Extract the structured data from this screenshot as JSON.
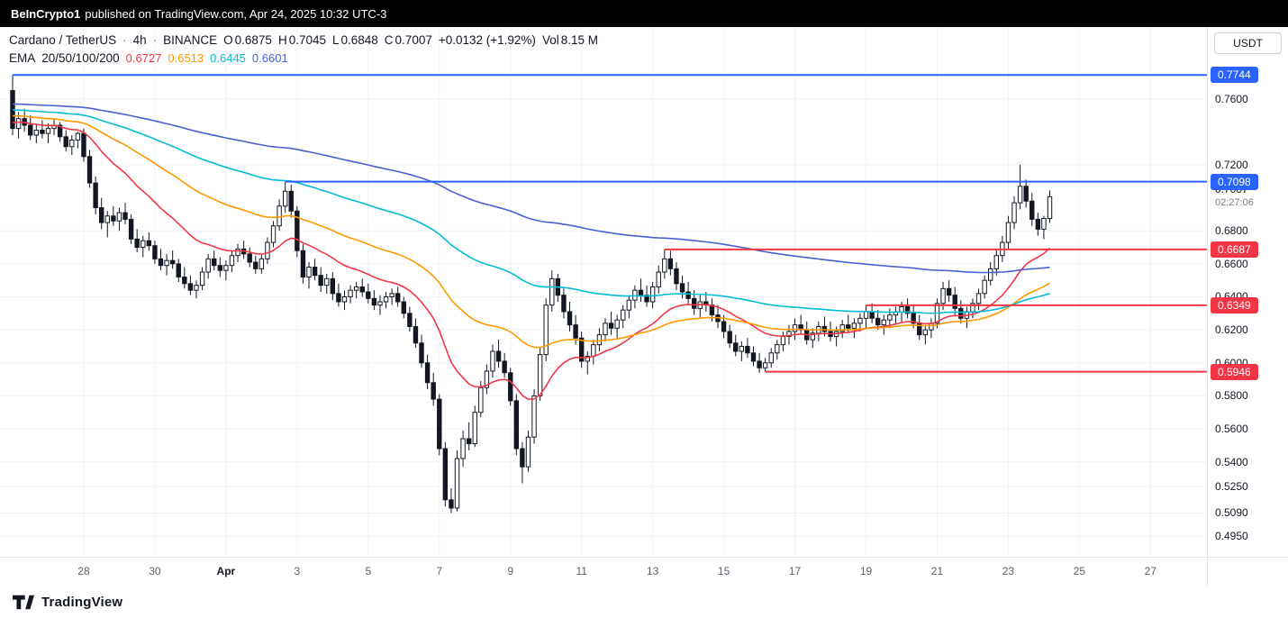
{
  "header": {
    "author": "BeInCrypto1",
    "text": "published on TradingView.com, Apr 24, 2025 10:32 UTC-3"
  },
  "legend": {
    "symbol": "Cardano / TetherUS",
    "dot": "·",
    "interval": "4h",
    "exchange": "BINANCE",
    "o_label": "O",
    "o": "0.6875",
    "h_label": "H",
    "h": "0.7045",
    "l_label": "L",
    "l": "0.6848",
    "c_label": "C",
    "c": "0.7007",
    "change": "+0.0132 (+1.92%)",
    "vol_label": "Vol",
    "vol": "8.15 M",
    "ema": {
      "label": "EMA",
      "params": "20/50/100/200",
      "values": [
        "0.6727",
        "0.6513",
        "0.6445",
        "0.6601"
      ]
    }
  },
  "axis": {
    "currency": "USDT"
  },
  "footer": {
    "brand": "TradingView"
  },
  "chart_data": {
    "type": "candlestick",
    "symbol": "Cardano / TetherUS (ADA/USDT)",
    "exchange": "BINANCE",
    "interval": "4h",
    "ylim": [
      0.4825,
      0.8035
    ],
    "start_label": "Mar 26",
    "bars_per_day": 6,
    "colors": {
      "up_fill": "#ffffff",
      "down_fill": "#131722",
      "outline": "#131722",
      "grid": "#f0f3fa",
      "level_blue": "#2962ff",
      "level_red": "#f23645"
    },
    "price_ticks": [
      "0.7600",
      "0.7200",
      "0.6800",
      "0.6600",
      "0.6400",
      "0.6200",
      "0.6000",
      "0.5800",
      "0.5600",
      "0.5400",
      "0.5250",
      "0.5090",
      "0.4950"
    ],
    "time_ticks": [
      {
        "label": "28",
        "index": 12
      },
      {
        "label": "30",
        "index": 24
      },
      {
        "label": "Apr",
        "index": 36,
        "month": true
      },
      {
        "label": "3",
        "index": 48
      },
      {
        "label": "5",
        "index": 60
      },
      {
        "label": "7",
        "index": 72
      },
      {
        "label": "9",
        "index": 84
      },
      {
        "label": "11",
        "index": 96
      },
      {
        "label": "13",
        "index": 108
      },
      {
        "label": "15",
        "index": 120
      },
      {
        "label": "17",
        "index": 132
      },
      {
        "label": "19",
        "index": 144
      },
      {
        "label": "21",
        "index": 156
      },
      {
        "label": "23",
        "index": 168
      },
      {
        "label": "25",
        "index": 180
      },
      {
        "label": "27",
        "index": 192
      }
    ],
    "current_price": {
      "value": "0.7007",
      "countdown": "02:27:06"
    },
    "levels": [
      {
        "label": "0.7744",
        "value": 0.7744,
        "color": "#2962ff",
        "start_index": 0
      },
      {
        "label": "0.7098",
        "value": 0.7098,
        "color": "#2962ff",
        "start_index": 46
      },
      {
        "label": "0.6687",
        "value": 0.6687,
        "color": "#f23645",
        "start_index": 110
      },
      {
        "label": "0.6349",
        "value": 0.6349,
        "color": "#f23645",
        "start_index": 144
      },
      {
        "label": "0.5946",
        "value": 0.5946,
        "color": "#f23645",
        "start_index": 127
      }
    ],
    "ema": {
      "periods": [
        20,
        50,
        100,
        200
      ],
      "seeds": [
        0.746,
        0.75,
        0.7535,
        0.757
      ],
      "colors": [
        "#f23645",
        "#ff9800",
        "#00bcd4",
        "#4a5fd0"
      ],
      "last_values": [
        0.6727,
        0.6513,
        0.6445,
        0.6601
      ]
    },
    "candles": [
      [
        0.765,
        0.7744,
        0.738,
        0.742
      ],
      [
        0.742,
        0.752,
        0.736,
        0.748
      ],
      [
        0.748,
        0.754,
        0.74,
        0.744
      ],
      [
        0.744,
        0.75,
        0.735,
        0.738
      ],
      [
        0.738,
        0.745,
        0.733,
        0.741
      ],
      [
        0.741,
        0.747,
        0.736,
        0.739
      ],
      [
        0.739,
        0.745,
        0.733,
        0.742
      ],
      [
        0.742,
        0.748,
        0.738,
        0.744
      ],
      [
        0.744,
        0.746,
        0.734,
        0.737
      ],
      [
        0.737,
        0.741,
        0.728,
        0.731
      ],
      [
        0.731,
        0.738,
        0.726,
        0.735
      ],
      [
        0.735,
        0.74,
        0.73,
        0.739
      ],
      [
        0.739,
        0.742,
        0.722,
        0.725
      ],
      [
        0.725,
        0.729,
        0.706,
        0.709
      ],
      [
        0.709,
        0.713,
        0.69,
        0.694
      ],
      [
        0.694,
        0.7,
        0.681,
        0.685
      ],
      [
        0.685,
        0.692,
        0.676,
        0.689
      ],
      [
        0.689,
        0.695,
        0.683,
        0.686
      ],
      [
        0.686,
        0.694,
        0.68,
        0.691
      ],
      [
        0.691,
        0.697,
        0.684,
        0.687
      ],
      [
        0.687,
        0.69,
        0.672,
        0.675
      ],
      [
        0.675,
        0.681,
        0.667,
        0.67
      ],
      [
        0.67,
        0.677,
        0.664,
        0.674
      ],
      [
        0.674,
        0.679,
        0.668,
        0.671
      ],
      [
        0.671,
        0.674,
        0.66,
        0.663
      ],
      [
        0.663,
        0.669,
        0.656,
        0.659
      ],
      [
        0.659,
        0.666,
        0.653,
        0.662
      ],
      [
        0.662,
        0.668,
        0.657,
        0.66
      ],
      [
        0.66,
        0.663,
        0.649,
        0.652
      ],
      [
        0.652,
        0.658,
        0.645,
        0.648
      ],
      [
        0.648,
        0.653,
        0.641,
        0.644
      ],
      [
        0.644,
        0.65,
        0.639,
        0.647
      ],
      [
        0.647,
        0.658,
        0.644,
        0.655
      ],
      [
        0.655,
        0.666,
        0.651,
        0.663
      ],
      [
        0.663,
        0.668,
        0.656,
        0.659
      ],
      [
        0.659,
        0.664,
        0.652,
        0.656
      ],
      [
        0.656,
        0.662,
        0.65,
        0.659
      ],
      [
        0.659,
        0.668,
        0.655,
        0.665
      ],
      [
        0.665,
        0.672,
        0.661,
        0.669
      ],
      [
        0.669,
        0.674,
        0.663,
        0.666
      ],
      [
        0.666,
        0.67,
        0.658,
        0.661
      ],
      [
        0.661,
        0.665,
        0.654,
        0.657
      ],
      [
        0.657,
        0.666,
        0.654,
        0.663
      ],
      [
        0.663,
        0.676,
        0.66,
        0.673
      ],
      [
        0.673,
        0.686,
        0.67,
        0.683
      ],
      [
        0.683,
        0.699,
        0.68,
        0.695
      ],
      [
        0.695,
        0.7098,
        0.691,
        0.704
      ],
      [
        0.704,
        0.708,
        0.688,
        0.692
      ],
      [
        0.692,
        0.695,
        0.664,
        0.668
      ],
      [
        0.668,
        0.672,
        0.648,
        0.652
      ],
      [
        0.652,
        0.661,
        0.645,
        0.658
      ],
      [
        0.658,
        0.663,
        0.65,
        0.653
      ],
      [
        0.653,
        0.658,
        0.643,
        0.647
      ],
      [
        0.647,
        0.654,
        0.642,
        0.651
      ],
      [
        0.651,
        0.655,
        0.638,
        0.642
      ],
      [
        0.642,
        0.648,
        0.634,
        0.637
      ],
      [
        0.637,
        0.644,
        0.632,
        0.64
      ],
      [
        0.64,
        0.647,
        0.636,
        0.644
      ],
      [
        0.644,
        0.649,
        0.639,
        0.646
      ],
      [
        0.646,
        0.651,
        0.64,
        0.643
      ],
      [
        0.643,
        0.648,
        0.636,
        0.639
      ],
      [
        0.639,
        0.644,
        0.632,
        0.635
      ],
      [
        0.635,
        0.641,
        0.629,
        0.637
      ],
      [
        0.637,
        0.643,
        0.633,
        0.64
      ],
      [
        0.64,
        0.645,
        0.635,
        0.642
      ],
      [
        0.642,
        0.646,
        0.634,
        0.637
      ],
      [
        0.637,
        0.64,
        0.627,
        0.63
      ],
      [
        0.63,
        0.634,
        0.619,
        0.622
      ],
      [
        0.622,
        0.627,
        0.609,
        0.612
      ],
      [
        0.612,
        0.617,
        0.597,
        0.6
      ],
      [
        0.6,
        0.605,
        0.584,
        0.588
      ],
      [
        0.588,
        0.594,
        0.574,
        0.578
      ],
      [
        0.578,
        0.581,
        0.544,
        0.548
      ],
      [
        0.548,
        0.552,
        0.513,
        0.517
      ],
      [
        0.517,
        0.524,
        0.509,
        0.512
      ],
      [
        0.512,
        0.547,
        0.51,
        0.542
      ],
      [
        0.542,
        0.559,
        0.537,
        0.554
      ],
      [
        0.554,
        0.564,
        0.547,
        0.551
      ],
      [
        0.551,
        0.574,
        0.549,
        0.57
      ],
      [
        0.57,
        0.589,
        0.567,
        0.585
      ],
      [
        0.585,
        0.599,
        0.581,
        0.595
      ],
      [
        0.595,
        0.611,
        0.591,
        0.607
      ],
      [
        0.607,
        0.614,
        0.597,
        0.601
      ],
      [
        0.601,
        0.606,
        0.591,
        0.594
      ],
      [
        0.594,
        0.597,
        0.574,
        0.577
      ],
      [
        0.577,
        0.581,
        0.544,
        0.548
      ],
      [
        0.548,
        0.552,
        0.527,
        0.537
      ],
      [
        0.537,
        0.559,
        0.534,
        0.555
      ],
      [
        0.555,
        0.584,
        0.551,
        0.58
      ],
      [
        0.58,
        0.609,
        0.577,
        0.605
      ],
      [
        0.605,
        0.639,
        0.601,
        0.635
      ],
      [
        0.635,
        0.656,
        0.631,
        0.651
      ],
      [
        0.651,
        0.654,
        0.637,
        0.641
      ],
      [
        0.641,
        0.645,
        0.627,
        0.631
      ],
      [
        0.631,
        0.637,
        0.619,
        0.623
      ],
      [
        0.623,
        0.629,
        0.611,
        0.615
      ],
      [
        0.615,
        0.619,
        0.597,
        0.601
      ],
      [
        0.601,
        0.607,
        0.593,
        0.604
      ],
      [
        0.604,
        0.614,
        0.599,
        0.611
      ],
      [
        0.611,
        0.621,
        0.607,
        0.617
      ],
      [
        0.617,
        0.627,
        0.613,
        0.624
      ],
      [
        0.624,
        0.631,
        0.617,
        0.621
      ],
      [
        0.621,
        0.629,
        0.615,
        0.626
      ],
      [
        0.626,
        0.635,
        0.621,
        0.632
      ],
      [
        0.632,
        0.641,
        0.627,
        0.638
      ],
      [
        0.638,
        0.647,
        0.633,
        0.644
      ],
      [
        0.644,
        0.651,
        0.637,
        0.641
      ],
      [
        0.641,
        0.647,
        0.634,
        0.637
      ],
      [
        0.637,
        0.649,
        0.633,
        0.646
      ],
      [
        0.646,
        0.659,
        0.642,
        0.655
      ],
      [
        0.655,
        0.6687,
        0.651,
        0.663
      ],
      [
        0.663,
        0.668,
        0.653,
        0.657
      ],
      [
        0.657,
        0.661,
        0.644,
        0.648
      ],
      [
        0.648,
        0.653,
        0.639,
        0.643
      ],
      [
        0.643,
        0.649,
        0.635,
        0.639
      ],
      [
        0.639,
        0.644,
        0.629,
        0.633
      ],
      [
        0.633,
        0.641,
        0.627,
        0.637
      ],
      [
        0.637,
        0.643,
        0.631,
        0.635
      ],
      [
        0.635,
        0.639,
        0.625,
        0.629
      ],
      [
        0.629,
        0.635,
        0.621,
        0.625
      ],
      [
        0.625,
        0.629,
        0.615,
        0.619
      ],
      [
        0.619,
        0.623,
        0.609,
        0.612
      ],
      [
        0.612,
        0.617,
        0.604,
        0.607
      ],
      [
        0.607,
        0.613,
        0.601,
        0.61
      ],
      [
        0.61,
        0.615,
        0.603,
        0.606
      ],
      [
        0.606,
        0.61,
        0.598,
        0.601
      ],
      [
        0.601,
        0.606,
        0.594,
        0.597
      ],
      [
        0.597,
        0.603,
        0.5946,
        0.6
      ],
      [
        0.6,
        0.609,
        0.597,
        0.606
      ],
      [
        0.606,
        0.614,
        0.602,
        0.611
      ],
      [
        0.611,
        0.619,
        0.607,
        0.616
      ],
      [
        0.616,
        0.623,
        0.611,
        0.619
      ],
      [
        0.619,
        0.627,
        0.614,
        0.623
      ],
      [
        0.623,
        0.629,
        0.617,
        0.62
      ],
      [
        0.62,
        0.625,
        0.611,
        0.614
      ],
      [
        0.614,
        0.621,
        0.609,
        0.618
      ],
      [
        0.618,
        0.625,
        0.613,
        0.622
      ],
      [
        0.622,
        0.628,
        0.616,
        0.619
      ],
      [
        0.619,
        0.625,
        0.613,
        0.616
      ],
      [
        0.616,
        0.622,
        0.61,
        0.619
      ],
      [
        0.619,
        0.626,
        0.615,
        0.623
      ],
      [
        0.623,
        0.629,
        0.618,
        0.621
      ],
      [
        0.621,
        0.627,
        0.615,
        0.624
      ],
      [
        0.624,
        0.63,
        0.619,
        0.627
      ],
      [
        0.627,
        0.6349,
        0.621,
        0.631
      ],
      [
        0.631,
        0.636,
        0.624,
        0.627
      ],
      [
        0.627,
        0.632,
        0.62,
        0.623
      ],
      [
        0.623,
        0.629,
        0.617,
        0.626
      ],
      [
        0.626,
        0.633,
        0.621,
        0.629
      ],
      [
        0.629,
        0.634,
        0.623,
        0.631
      ],
      [
        0.631,
        0.637,
        0.625,
        0.634
      ],
      [
        0.634,
        0.639,
        0.627,
        0.63
      ],
      [
        0.63,
        0.635,
        0.621,
        0.624
      ],
      [
        0.624,
        0.629,
        0.614,
        0.617
      ],
      [
        0.617,
        0.623,
        0.611,
        0.62
      ],
      [
        0.62,
        0.627,
        0.615,
        0.624
      ],
      [
        0.624,
        0.639,
        0.621,
        0.636
      ],
      [
        0.636,
        0.649,
        0.632,
        0.645
      ],
      [
        0.645,
        0.65,
        0.637,
        0.641
      ],
      [
        0.641,
        0.646,
        0.629,
        0.633
      ],
      [
        0.633,
        0.638,
        0.624,
        0.627
      ],
      [
        0.627,
        0.634,
        0.621,
        0.631
      ],
      [
        0.631,
        0.639,
        0.627,
        0.636
      ],
      [
        0.636,
        0.645,
        0.632,
        0.642
      ],
      [
        0.642,
        0.653,
        0.639,
        0.65
      ],
      [
        0.65,
        0.661,
        0.647,
        0.657
      ],
      [
        0.657,
        0.669,
        0.653,
        0.665
      ],
      [
        0.665,
        0.677,
        0.661,
        0.673
      ],
      [
        0.673,
        0.689,
        0.669,
        0.685
      ],
      [
        0.685,
        0.701,
        0.681,
        0.697
      ],
      [
        0.697,
        0.72,
        0.693,
        0.707
      ],
      [
        0.707,
        0.711,
        0.694,
        0.698
      ],
      [
        0.698,
        0.703,
        0.683,
        0.687
      ],
      [
        0.687,
        0.691,
        0.677,
        0.681
      ],
      [
        0.681,
        0.689,
        0.675,
        0.6875
      ],
      [
        0.6875,
        0.7045,
        0.6848,
        0.7007
      ]
    ]
  }
}
